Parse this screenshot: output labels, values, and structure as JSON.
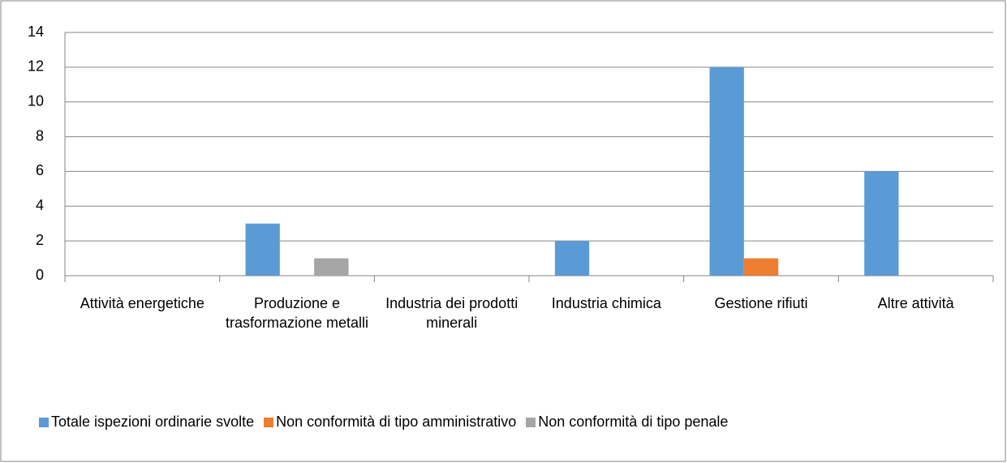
{
  "chart_data": {
    "type": "bar",
    "categories": [
      "Attività energetiche",
      "Produzione e trasformazione metalli",
      "Industria dei prodotti minerali",
      "Industria chimica",
      "Gestione rifiuti",
      "Altre attività"
    ],
    "series": [
      {
        "name": "Totale ispezioni ordinarie svolte",
        "color": "#5b9bd5",
        "values": [
          0,
          3,
          0,
          2,
          12,
          6
        ]
      },
      {
        "name": "Non conformità di tipo amministrativo",
        "color": "#ed7d31",
        "values": [
          0,
          0,
          0,
          0,
          1,
          0
        ]
      },
      {
        "name": "Non conformità di tipo penale",
        "color": "#a5a5a5",
        "values": [
          0,
          1,
          0,
          0,
          0,
          0
        ]
      }
    ],
    "ylim": [
      0,
      14
    ],
    "yticks": [
      0,
      2,
      4,
      6,
      8,
      10,
      12,
      14
    ],
    "grid": true,
    "legend": "bottom"
  }
}
